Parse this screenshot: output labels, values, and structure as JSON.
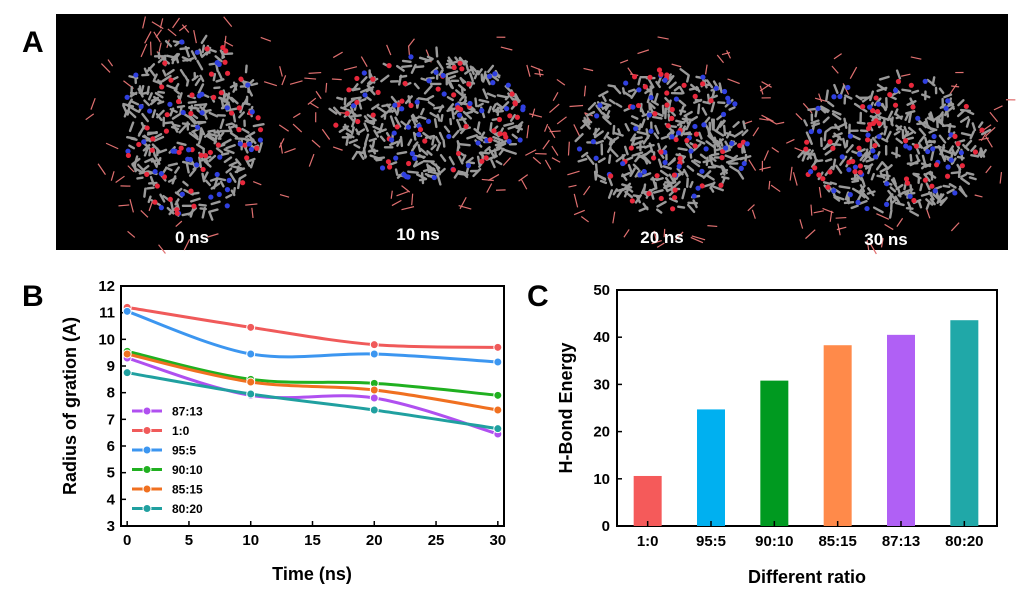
{
  "panel_labels": {
    "a": "A",
    "b": "B",
    "c": "C"
  },
  "snapshots": {
    "labels": [
      "0 ns",
      "10 ns",
      "20 ns",
      "30 ns"
    ]
  },
  "colors": {
    "background_dark": "#000000",
    "carbon": "#9a9a9a",
    "oxygen": "#e8283c",
    "nitrogen": "#3040e0",
    "water": "#e07070"
  },
  "chart_data": [
    {
      "type": "line",
      "panel": "B",
      "title": "",
      "xlabel": "Time (ns)",
      "ylabel": "Radius of gration (A)",
      "xlim": [
        -0.5,
        30.5
      ],
      "ylim": [
        3,
        12
      ],
      "xticks": [
        0,
        5,
        10,
        15,
        20,
        25,
        30
      ],
      "yticks": [
        3,
        4,
        5,
        6,
        7,
        8,
        9,
        10,
        11,
        12
      ],
      "x": [
        0,
        10,
        20,
        30
      ],
      "legend_position": "lower-left",
      "series": [
        {
          "name": "87:13",
          "color": "#b050f0",
          "values": [
            9.3,
            7.9,
            7.8,
            6.45
          ]
        },
        {
          "name": "1:0",
          "color": "#f05a5a",
          "values": [
            11.2,
            10.45,
            9.8,
            9.7
          ]
        },
        {
          "name": "95:5",
          "color": "#3c96f0",
          "values": [
            11.05,
            9.45,
            9.45,
            9.15
          ]
        },
        {
          "name": "90:10",
          "color": "#20b020",
          "values": [
            9.55,
            8.5,
            8.35,
            7.9
          ]
        },
        {
          "name": "85:15",
          "color": "#f07020",
          "values": [
            9.45,
            8.4,
            8.1,
            7.35
          ]
        },
        {
          "name": "80:20",
          "color": "#20a0a0",
          "values": [
            8.75,
            7.95,
            7.35,
            6.65
          ]
        }
      ]
    },
    {
      "type": "bar",
      "panel": "C",
      "title": "",
      "xlabel": "Different ratio",
      "ylabel": "H-Bond Energy",
      "ylim": [
        0,
        50
      ],
      "yticks": [
        0,
        10,
        20,
        30,
        40,
        50
      ],
      "categories": [
        "1:0",
        "95:5",
        "90:10",
        "85:15",
        "87:13",
        "80:20"
      ],
      "values": [
        10.6,
        24.7,
        30.8,
        38.3,
        40.5,
        43.6
      ],
      "colors": [
        "#f55a5a",
        "#00b0f0",
        "#009a20",
        "#ff8a4a",
        "#b060f5",
        "#20a8a8"
      ]
    }
  ]
}
